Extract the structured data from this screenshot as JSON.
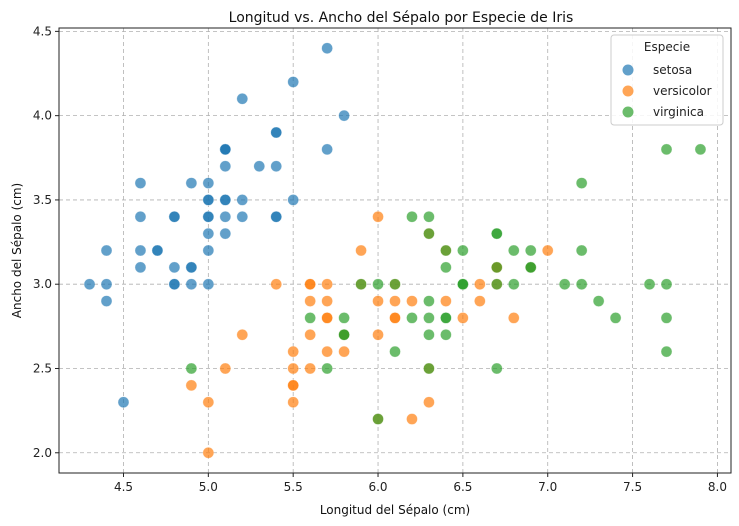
{
  "chart_data": {
    "type": "scatter",
    "title": "Longitud vs. Ancho del Sépalo por Especie de Iris",
    "xlabel": "Longitud del Sépalo (cm)",
    "ylabel": "Ancho del Sépalo (cm)",
    "xlim": [
      4.12,
      8.08
    ],
    "ylim": [
      1.88,
      4.52
    ],
    "xticks": [
      "4.5",
      "5.0",
      "5.5",
      "6.0",
      "6.5",
      "7.0",
      "7.5",
      "8.0"
    ],
    "yticks": [
      "2.0",
      "2.5",
      "3.0",
      "3.5",
      "4.0",
      "4.5"
    ],
    "grid": true,
    "legend": {
      "title": "Especie",
      "placement": "top-right"
    },
    "series": [
      {
        "name": "setosa",
        "color": "#1f77b4",
        "x": [
          5.1,
          4.9,
          4.7,
          4.6,
          5.0,
          5.4,
          4.6,
          5.0,
          4.4,
          4.9,
          5.4,
          4.8,
          4.8,
          4.3,
          5.8,
          5.7,
          5.4,
          5.1,
          5.7,
          5.1,
          5.4,
          5.1,
          4.6,
          5.1,
          4.8,
          5.0,
          5.0,
          5.2,
          5.2,
          4.7,
          4.8,
          5.4,
          5.2,
          5.5,
          4.9,
          5.0,
          5.5,
          4.9,
          4.4,
          5.1,
          5.0,
          4.5,
          4.4,
          5.0,
          5.1,
          4.8,
          5.1,
          4.6,
          5.3,
          5.0
        ],
        "y": [
          3.5,
          3.0,
          3.2,
          3.1,
          3.6,
          3.9,
          3.4,
          3.4,
          2.9,
          3.1,
          3.7,
          3.4,
          3.0,
          3.0,
          4.0,
          4.4,
          3.9,
          3.5,
          3.8,
          3.8,
          3.4,
          3.7,
          3.6,
          3.3,
          3.4,
          3.0,
          3.4,
          3.5,
          3.4,
          3.2,
          3.1,
          3.4,
          4.1,
          4.2,
          3.1,
          3.2,
          3.5,
          3.6,
          3.0,
          3.4,
          3.5,
          2.3,
          3.2,
          3.5,
          3.8,
          3.0,
          3.8,
          3.2,
          3.7,
          3.3
        ]
      },
      {
        "name": "versicolor",
        "color": "#ff7f0e",
        "x": [
          7.0,
          6.4,
          6.9,
          5.5,
          6.5,
          5.7,
          6.3,
          4.9,
          6.6,
          5.2,
          5.0,
          5.9,
          6.0,
          6.1,
          5.6,
          6.7,
          5.6,
          5.8,
          6.2,
          5.6,
          5.9,
          6.1,
          6.3,
          6.1,
          6.4,
          6.6,
          6.8,
          6.7,
          6.0,
          5.7,
          5.5,
          5.5,
          5.8,
          6.0,
          5.4,
          6.0,
          6.7,
          6.3,
          5.6,
          5.5,
          5.5,
          6.1,
          5.8,
          5.0,
          5.6,
          5.7,
          5.7,
          6.2,
          5.1,
          5.7
        ],
        "y": [
          3.2,
          3.2,
          3.1,
          2.3,
          2.8,
          2.8,
          3.3,
          2.4,
          2.9,
          2.7,
          2.0,
          3.0,
          2.2,
          2.9,
          2.9,
          3.1,
          3.0,
          2.7,
          2.2,
          2.5,
          3.2,
          2.8,
          2.5,
          2.8,
          2.9,
          3.0,
          2.8,
          3.0,
          2.9,
          2.6,
          2.4,
          2.4,
          2.7,
          2.7,
          3.0,
          3.4,
          3.1,
          2.3,
          3.0,
          2.5,
          2.6,
          3.0,
          2.6,
          2.3,
          2.7,
          3.0,
          2.9,
          2.9,
          2.5,
          2.8
        ]
      },
      {
        "name": "virginica",
        "color": "#2ca02c",
        "x": [
          6.3,
          5.8,
          7.1,
          6.3,
          6.5,
          7.6,
          4.9,
          7.3,
          6.7,
          7.2,
          6.5,
          6.4,
          6.8,
          5.7,
          5.8,
          6.4,
          6.5,
          7.7,
          7.7,
          6.0,
          6.9,
          5.6,
          7.7,
          6.3,
          6.7,
          7.2,
          6.2,
          6.1,
          6.4,
          7.2,
          7.4,
          7.9,
          6.4,
          6.3,
          6.1,
          7.7,
          6.3,
          6.4,
          6.0,
          6.9,
          6.7,
          6.9,
          5.8,
          6.8,
          6.7,
          6.7,
          6.3,
          6.5,
          6.2,
          5.9
        ],
        "y": [
          3.3,
          2.7,
          3.0,
          2.9,
          3.0,
          3.0,
          2.5,
          2.9,
          2.5,
          3.6,
          3.2,
          2.7,
          3.0,
          2.5,
          2.8,
          3.2,
          3.0,
          3.8,
          2.6,
          2.2,
          3.2,
          2.8,
          2.8,
          2.7,
          3.3,
          3.2,
          2.8,
          3.0,
          2.8,
          3.0,
          2.8,
          3.8,
          2.8,
          2.8,
          2.6,
          3.0,
          3.4,
          3.1,
          3.0,
          3.1,
          3.1,
          3.1,
          2.7,
          3.2,
          3.3,
          3.0,
          2.5,
          3.0,
          3.4,
          3.0
        ]
      }
    ]
  }
}
